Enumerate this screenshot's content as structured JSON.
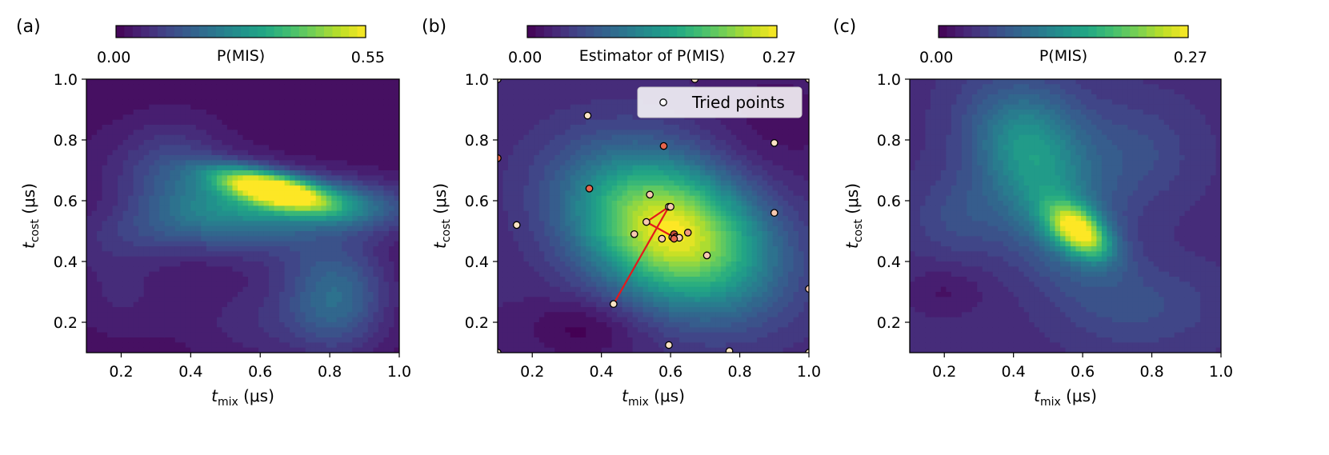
{
  "colorbar_colors": [
    "#440154",
    "#482475",
    "#414487",
    "#355f8d",
    "#2a788e",
    "#21918c",
    "#22a884",
    "#44bf70",
    "#7ad151",
    "#bddf26",
    "#fde725"
  ],
  "chart_data": [
    {
      "type": "heatmap",
      "panel_label": "(a)",
      "colorbar": {
        "min": 0.0,
        "max": 0.55,
        "min_label": "0.00",
        "max_label": "0.55",
        "label": "P(MIS)"
      },
      "xlim": [
        0.1,
        1.0
      ],
      "ylim": [
        0.1,
        1.0
      ],
      "xticks": [
        "0.2",
        "0.4",
        "0.6",
        "0.8",
        "1.0"
      ],
      "yticks": [
        "0.2",
        "0.4",
        "0.6",
        "0.8",
        "1.0"
      ],
      "xlabel": {
        "var": "t",
        "sub": "mix",
        "unit": " (μs)"
      },
      "ylabel": {
        "var": "t",
        "sub": "cost",
        "unit": " (μs)"
      },
      "field": {
        "base": 0.02,
        "components": [
          {
            "x": 0.63,
            "y": 0.64,
            "sx": 0.11,
            "sy": 0.045,
            "rho": -0.6,
            "a": 0.5
          },
          {
            "x": 0.78,
            "y": 0.59,
            "sx": 0.18,
            "sy": 0.06,
            "rho": -0.2,
            "a": 0.22
          },
          {
            "x": 0.5,
            "y": 0.58,
            "sx": 0.2,
            "sy": 0.12,
            "rho": -0.5,
            "a": 0.14
          },
          {
            "x": 0.82,
            "y": 0.28,
            "sx": 0.1,
            "sy": 0.12,
            "rho": 0.0,
            "a": 0.16
          },
          {
            "x": 0.35,
            "y": 0.52,
            "sx": 0.2,
            "sy": 0.08,
            "rho": 0.4,
            "a": 0.09
          },
          {
            "x": 0.35,
            "y": 0.75,
            "sx": 0.1,
            "sy": 0.1,
            "rho": 0.0,
            "a": 0.05
          },
          {
            "x": 0.2,
            "y": 0.3,
            "sx": 0.1,
            "sy": 0.1,
            "rho": 0.0,
            "a": 0.04
          },
          {
            "x": 0.6,
            "y": 0.2,
            "sx": 0.15,
            "sy": 0.1,
            "rho": 0.0,
            "a": 0.05
          }
        ]
      }
    },
    {
      "type": "heatmap",
      "panel_label": "(b)",
      "colorbar": {
        "min": 0.0,
        "max": 0.27,
        "min_label": "0.00",
        "max_label": "0.27",
        "label": "Estimator of P(MIS)"
      },
      "xlim": [
        0.1,
        1.0
      ],
      "ylim": [
        0.1,
        1.0
      ],
      "xticks": [
        "0.2",
        "0.4",
        "0.6",
        "0.8",
        "1.0"
      ],
      "yticks": [
        "0.2",
        "0.4",
        "0.6",
        "0.8",
        "1.0"
      ],
      "xlabel": {
        "var": "t",
        "sub": "mix",
        "unit": " (μs)"
      },
      "ylabel": {
        "var": "t",
        "sub": "cost",
        "unit": " (μs)"
      },
      "legend": {
        "label": "Tried points",
        "location": "upper right"
      },
      "field": {
        "base": 0.03,
        "components": [
          {
            "x": 0.6,
            "y": 0.5,
            "sx": 0.19,
            "sy": 0.17,
            "rho": -0.3,
            "a": 0.24
          },
          {
            "x": 0.35,
            "y": 0.18,
            "sx": 0.12,
            "sy": 0.07,
            "rho": 0.0,
            "a": -0.03
          },
          {
            "x": 0.9,
            "y": 0.85,
            "sx": 0.15,
            "sy": 0.15,
            "rho": 0.0,
            "a": -0.02
          }
        ]
      },
      "tried_points": [
        {
          "x": 0.1,
          "y": 1.0,
          "c": "#fbe4c4"
        },
        {
          "x": 0.67,
          "y": 1.0,
          "c": "#fbe4c4"
        },
        {
          "x": 1.0,
          "y": 1.0,
          "c": "#fbe4c4"
        },
        {
          "x": 0.36,
          "y": 0.88,
          "c": "#fbe4c4"
        },
        {
          "x": 0.58,
          "y": 0.78,
          "c": "#e8664d"
        },
        {
          "x": 0.9,
          "y": 0.79,
          "c": "#fbe4c4"
        },
        {
          "x": 0.1,
          "y": 0.74,
          "c": "#e8664d"
        },
        {
          "x": 0.365,
          "y": 0.64,
          "c": "#e8664d"
        },
        {
          "x": 0.54,
          "y": 0.62,
          "c": "#f7c9b0"
        },
        {
          "x": 0.595,
          "y": 0.58,
          "c": "#fbe4c4"
        },
        {
          "x": 0.6,
          "y": 0.58,
          "c": "#f7c9b0"
        },
        {
          "x": 0.155,
          "y": 0.52,
          "c": "#fbe4c4"
        },
        {
          "x": 0.53,
          "y": 0.53,
          "c": "#f7c9b0"
        },
        {
          "x": 0.9,
          "y": 0.56,
          "c": "#f7c9b0"
        },
        {
          "x": 0.495,
          "y": 0.49,
          "c": "#f7c9b0"
        },
        {
          "x": 0.65,
          "y": 0.495,
          "c": "#f09a80"
        },
        {
          "x": 0.575,
          "y": 0.475,
          "c": "#f7c9b0"
        },
        {
          "x": 0.605,
          "y": 0.48,
          "c": "#f09a80"
        },
        {
          "x": 0.61,
          "y": 0.49,
          "c": "#c24a3c"
        },
        {
          "x": 0.615,
          "y": 0.48,
          "c": "#d95a45"
        },
        {
          "x": 0.625,
          "y": 0.478,
          "c": "#f7c9b0"
        },
        {
          "x": 0.61,
          "y": 0.475,
          "c": "#e8664d"
        },
        {
          "x": 0.705,
          "y": 0.42,
          "c": "#f7c9b0"
        },
        {
          "x": 1.0,
          "y": 0.31,
          "c": "#f7c9b0"
        },
        {
          "x": 0.435,
          "y": 0.26,
          "c": "#fbe4c4"
        },
        {
          "x": 0.595,
          "y": 0.125,
          "c": "#fbe4c4"
        },
        {
          "x": 0.77,
          "y": 0.105,
          "c": "#fbe4c4"
        },
        {
          "x": 1.0,
          "y": 0.1,
          "c": "#fbe4c4"
        },
        {
          "x": 0.1,
          "y": 0.1,
          "c": "#fbe4c4"
        }
      ],
      "path": [
        [
          0.435,
          0.26
        ],
        [
          0.595,
          0.58
        ],
        [
          0.53,
          0.53
        ],
        [
          0.61,
          0.48
        ]
      ]
    },
    {
      "type": "heatmap",
      "panel_label": "(c)",
      "colorbar": {
        "min": 0.0,
        "max": 0.27,
        "min_label": "0.00",
        "max_label": "0.27",
        "label": "P(MIS)"
      },
      "xlim": [
        0.1,
        1.0
      ],
      "ylim": [
        0.1,
        1.0
      ],
      "xticks": [
        "0.2",
        "0.4",
        "0.6",
        "0.8",
        "1.0"
      ],
      "yticks": [
        "0.2",
        "0.4",
        "0.6",
        "0.8",
        "1.0"
      ],
      "xlabel": {
        "var": "t",
        "sub": "mix",
        "unit": " (μs)"
      },
      "ylabel": {
        "var": "t",
        "sub": "cost",
        "unit": " (μs)"
      },
      "field": {
        "base": 0.035,
        "components": [
          {
            "x": 0.59,
            "y": 0.5,
            "sx": 0.06,
            "sy": 0.06,
            "rho": -0.5,
            "a": 0.2
          },
          {
            "x": 0.5,
            "y": 0.62,
            "sx": 0.13,
            "sy": 0.2,
            "rho": -0.5,
            "a": 0.09
          },
          {
            "x": 0.45,
            "y": 0.82,
            "sx": 0.12,
            "sy": 0.12,
            "rho": 0.0,
            "a": 0.05
          },
          {
            "x": 0.75,
            "y": 0.75,
            "sx": 0.12,
            "sy": 0.12,
            "rho": 0.0,
            "a": 0.03
          },
          {
            "x": 0.25,
            "y": 0.55,
            "sx": 0.1,
            "sy": 0.1,
            "rho": 0.0,
            "a": 0.03
          },
          {
            "x": 0.8,
            "y": 0.25,
            "sx": 0.15,
            "sy": 0.1,
            "rho": 0.0,
            "a": 0.025
          },
          {
            "x": 0.2,
            "y": 0.3,
            "sx": 0.08,
            "sy": 0.06,
            "rho": 0.0,
            "a": -0.02
          }
        ]
      }
    }
  ]
}
